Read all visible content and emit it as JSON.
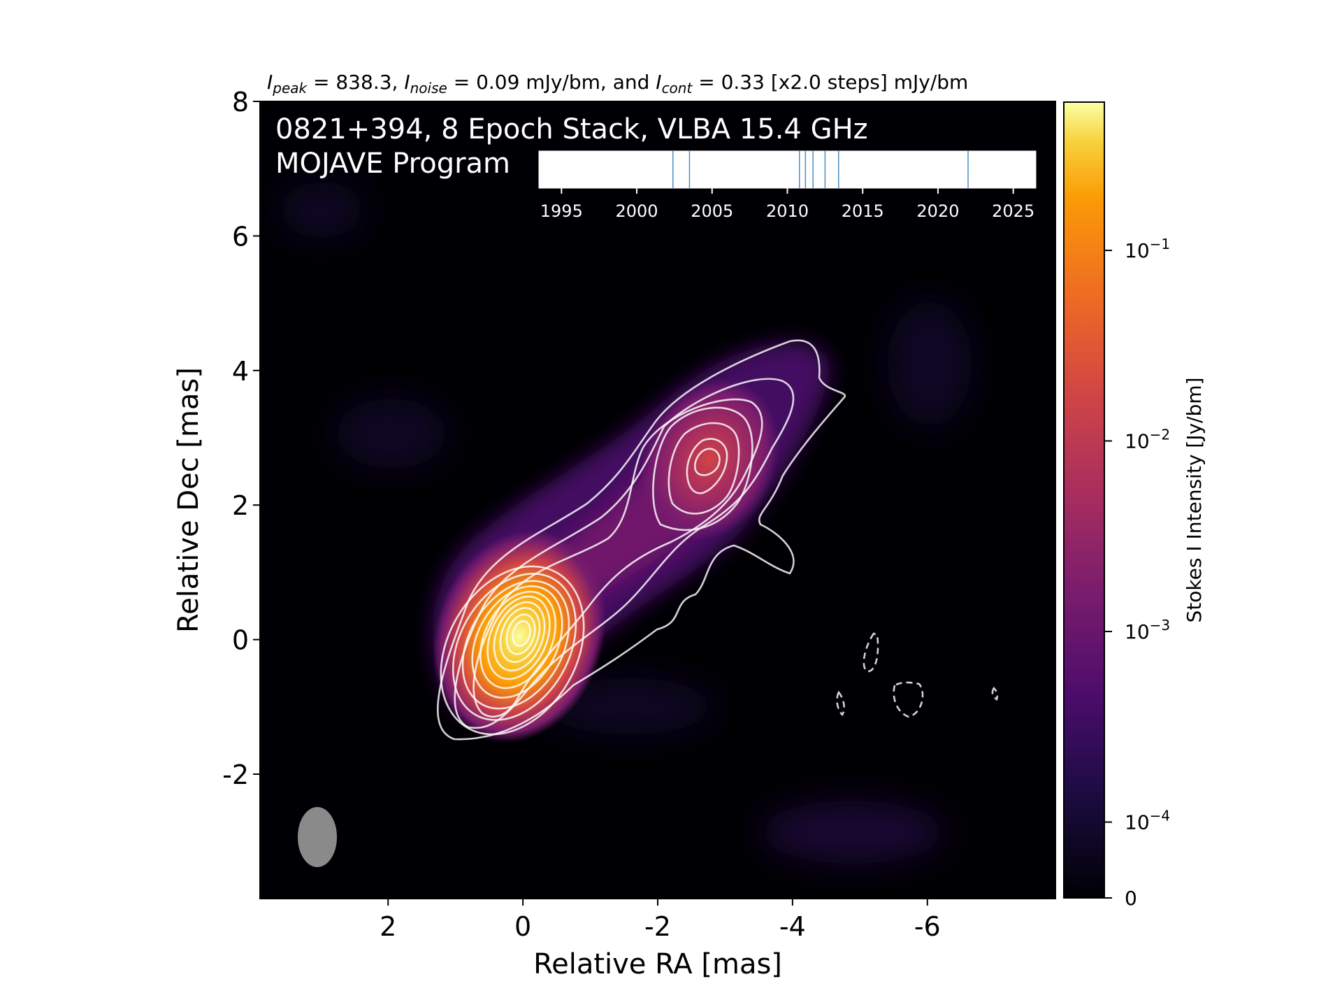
{
  "header": {
    "peak_sub": "peak",
    "peak_value": " = 838.3, ",
    "noise_sub": "noise",
    "noise_value": " = 0.09 mJy/bm, and ",
    "cont_sub": "cont",
    "cont_value": " = 0.33 [x2.0 steps] mJy/bm",
    "symbol": "I"
  },
  "image_title": {
    "line1": "0821+394, 8 Epoch Stack, VLBA 15.4 GHz",
    "line2": "MOJAVE Program"
  },
  "colors": {
    "background": "#000004",
    "contour": "#ffffff",
    "beam": "#8a8a8a",
    "epoch_line": "#4a8fc0"
  },
  "chart_data": {
    "type": "heatmap",
    "colormap": "inferno",
    "color_scale": "log",
    "xlabel": "Relative RA [mas]",
    "ylabel": "Relative Dec [mas]",
    "xlim": [
      3.9,
      -7.9
    ],
    "ylim": [
      -3.85,
      8.0
    ],
    "x_ticks": [
      2,
      0,
      -2,
      -4,
      -6
    ],
    "y_ticks": [
      8,
      6,
      4,
      2,
      0,
      -2
    ],
    "components": [
      {
        "name": "core",
        "ra": 0.0,
        "dec": 0.0
      },
      {
        "name": "jet-knot",
        "ra": -2.8,
        "dec": 2.7
      }
    ],
    "beam": {
      "ra": 3.0,
      "dec": -2.95
    },
    "colorbar": {
      "label": "Stokes I Intensity [Jy/bm]",
      "ticks": [
        {
          "label": "10",
          "exp": "−1",
          "value": 0.1
        },
        {
          "label": "10",
          "exp": "−2",
          "value": 0.01
        },
        {
          "label": "10",
          "exp": "−3",
          "value": 0.001
        },
        {
          "label": "10",
          "exp": "−4",
          "value": 0.0001
        },
        {
          "label": "0",
          "exp": "",
          "value": 0
        }
      ]
    },
    "epoch_timeline": {
      "xlim": [
        1993.5,
        2026.5
      ],
      "ticks": [
        1995,
        2000,
        2005,
        2010,
        2015,
        2020,
        2025
      ],
      "epochs": [
        2002.4,
        2003.5,
        2010.8,
        2011.2,
        2011.7,
        2012.5,
        2013.4,
        2022.0
      ]
    }
  }
}
